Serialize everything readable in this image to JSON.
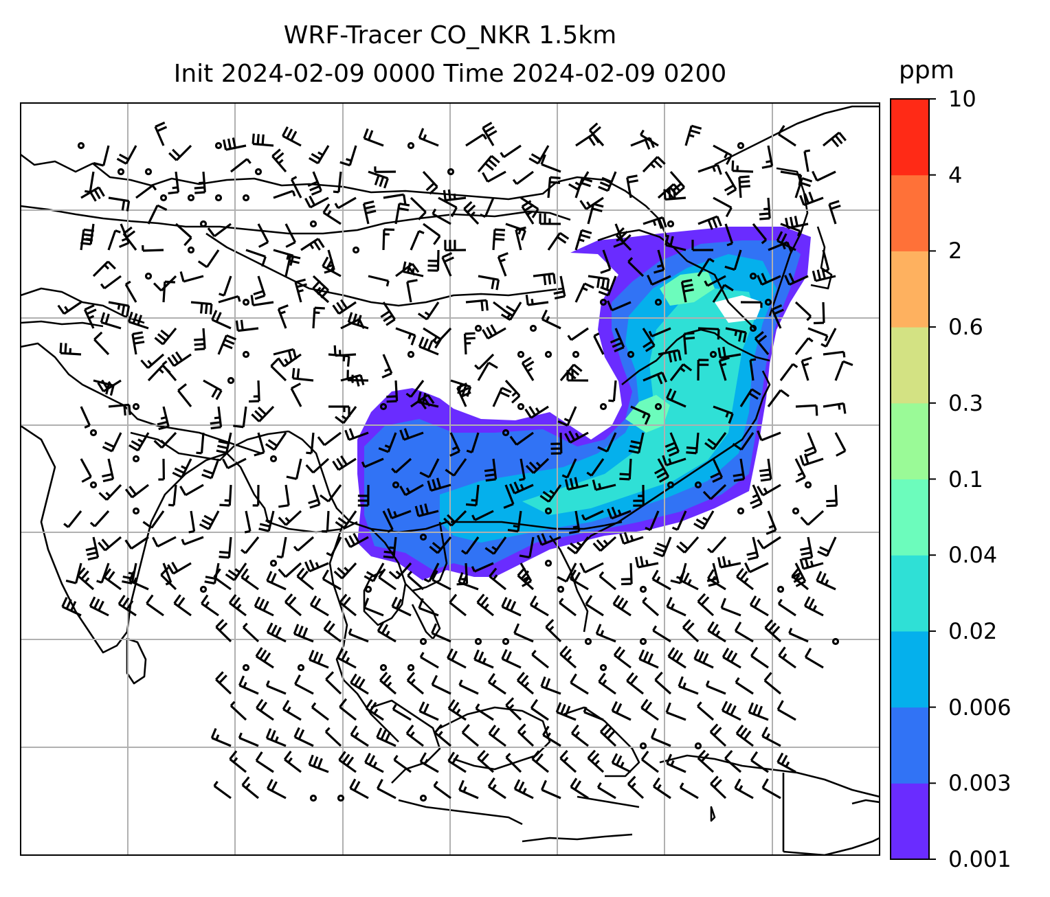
{
  "title": {
    "line1": "WRF-Tracer CO_NKR 1.5km",
    "line2": "Init 2024-02-09 0000 Time 2024-02-09 0200"
  },
  "colorbar": {
    "unit": "ppm",
    "levels": [
      "0.001",
      "0.003",
      "0.006",
      "0.02",
      "0.04",
      "0.1",
      "0.3",
      "0.6",
      "2",
      "4",
      "10"
    ],
    "colors": [
      "#6a2cff",
      "#3173f5",
      "#05b0ec",
      "#2fe0d6",
      "#6cfcbc",
      "#9afa97",
      "#d3e283",
      "#feb15f",
      "#ff7138",
      "#ff2a16"
    ]
  },
  "map": {
    "grid": "on",
    "grid_color": "#b0b0b0",
    "field": "CO tracer concentration",
    "overlay": "wind barbs (knots)"
  }
}
